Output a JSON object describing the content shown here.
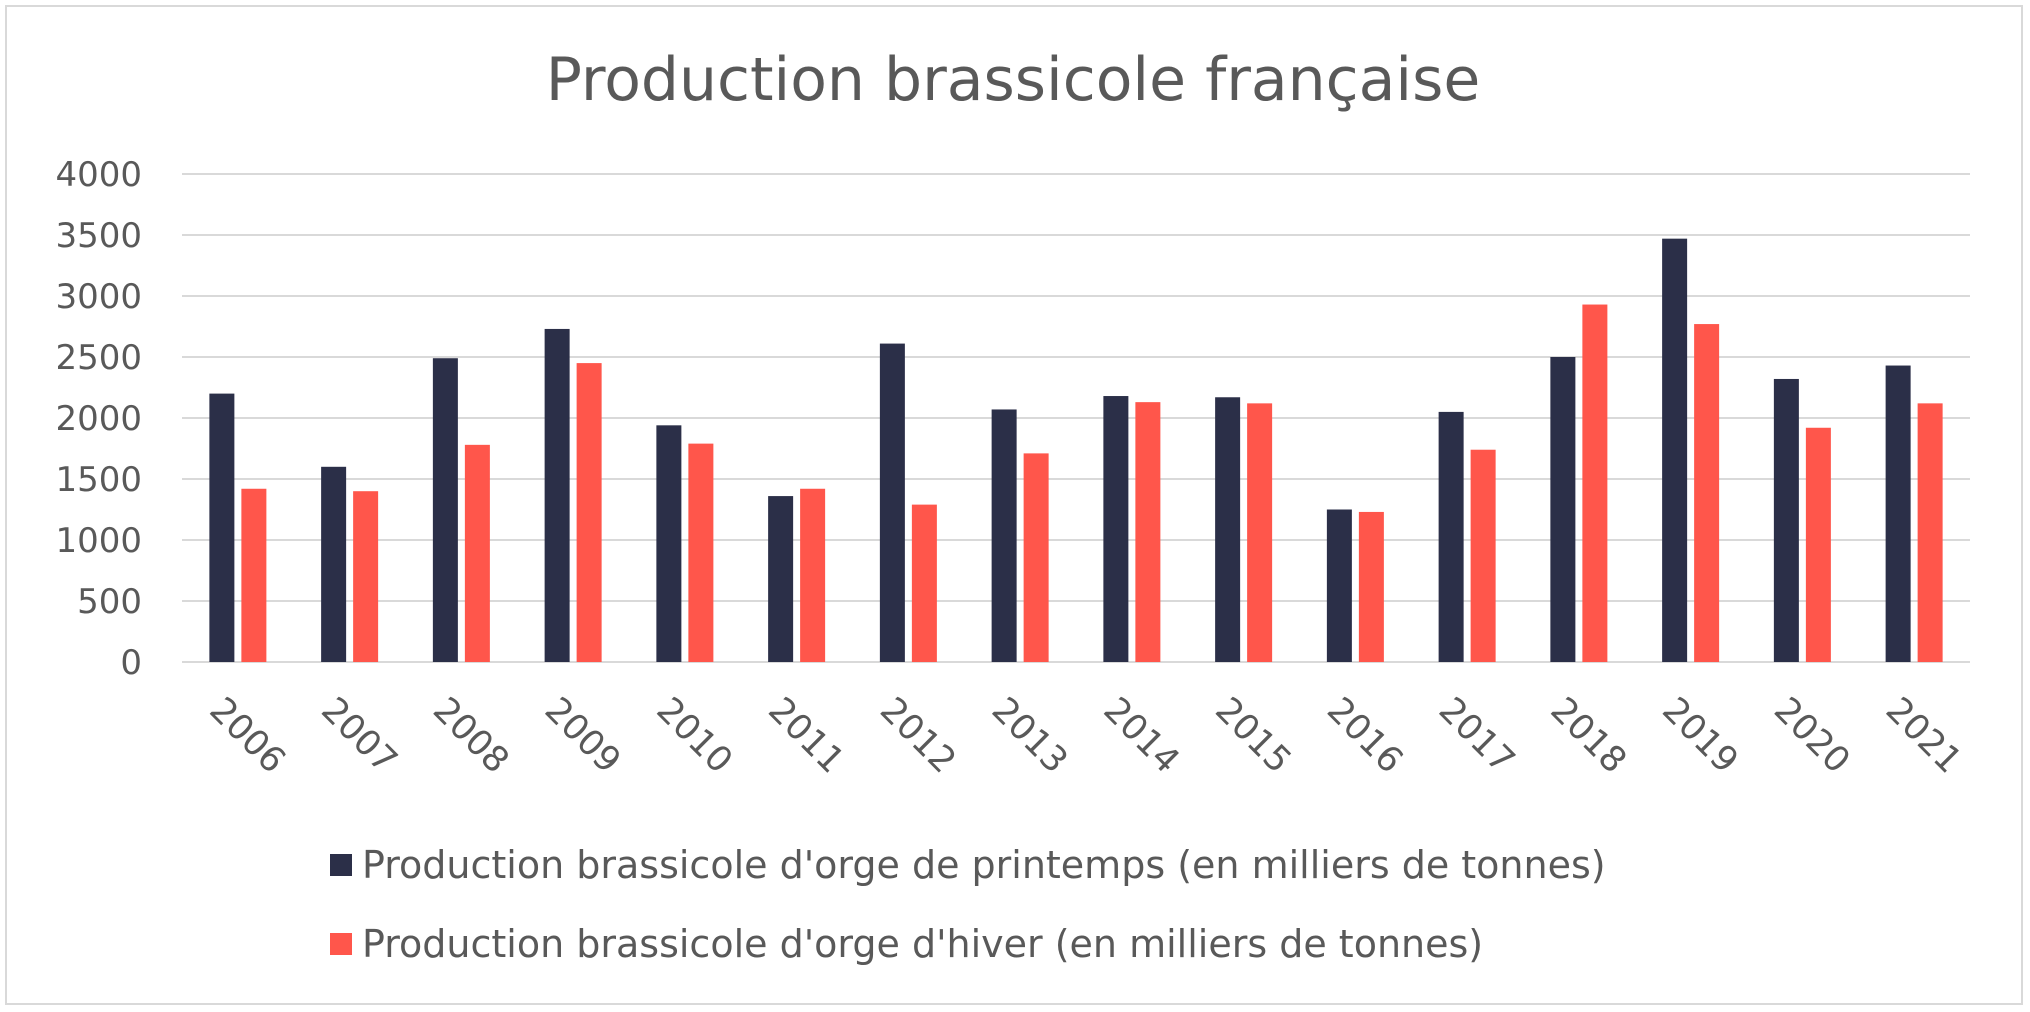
{
  "chart_data": {
    "type": "bar",
    "title": "Production brassicole française",
    "xlabel": "",
    "ylabel": "",
    "ylim": [
      0,
      4000
    ],
    "yticks": [
      0,
      500,
      1000,
      1500,
      2000,
      2500,
      3000,
      3500,
      4000
    ],
    "grid": true,
    "legend_position": "bottom",
    "categories": [
      "2006",
      "2007",
      "2008",
      "2009",
      "2010",
      "2011",
      "2012",
      "2013",
      "2014",
      "2015",
      "2016",
      "2017",
      "2018",
      "2019",
      "2020",
      "2021"
    ],
    "series": [
      {
        "name": "Production brassicole d'orge de printemps (en milliers de tonnes)",
        "color": "#2b2f48",
        "values": [
          2200,
          1600,
          2490,
          2730,
          1940,
          1360,
          2610,
          2070,
          2180,
          2170,
          1250,
          2050,
          2500,
          3470,
          2320,
          2430
        ]
      },
      {
        "name": "Production brassicole d'orge d'hiver (en milliers de tonnes)",
        "color": "#ff564b",
        "values": [
          1420,
          1400,
          1780,
          2450,
          1790,
          1420,
          1290,
          1710,
          2130,
          2120,
          1230,
          1740,
          2930,
          2770,
          1920,
          2120
        ]
      }
    ]
  }
}
